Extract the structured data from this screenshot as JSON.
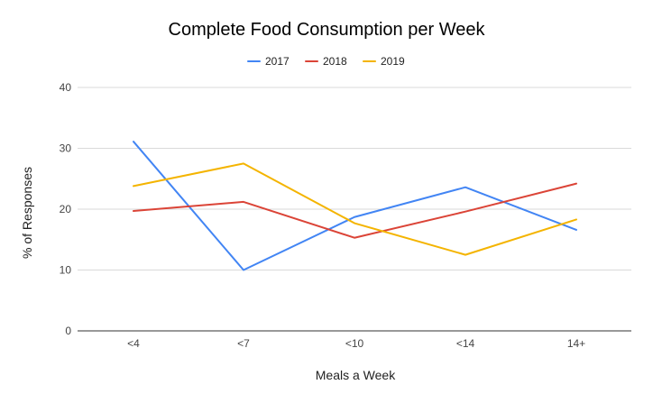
{
  "chart_data": {
    "type": "line",
    "title": "Complete Food Consumption per Week",
    "xlabel": "Meals a Week",
    "ylabel": "% of Responses",
    "categories": [
      "<4",
      "<7",
      "<10",
      "<14",
      "14+"
    ],
    "ylim": [
      0,
      40
    ],
    "yticks": [
      0,
      10,
      20,
      30,
      40
    ],
    "grid": true,
    "legend_position": "top",
    "series": [
      {
        "name": "2017",
        "color": "#4285F4",
        "values": [
          31.1,
          10.0,
          18.7,
          23.6,
          16.6
        ]
      },
      {
        "name": "2018",
        "color": "#DB4437",
        "values": [
          19.7,
          21.2,
          15.3,
          19.6,
          24.2
        ]
      },
      {
        "name": "2019",
        "color": "#F4B400",
        "values": [
          23.8,
          27.5,
          17.7,
          12.5,
          18.3
        ]
      }
    ]
  }
}
